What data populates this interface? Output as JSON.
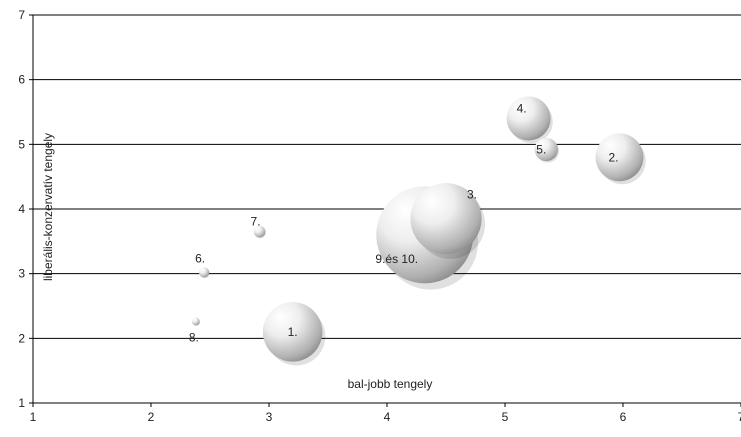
{
  "chart_data": {
    "type": "scatter",
    "subtype": "bubble",
    "title": "",
    "xlabel": "bal-jobb tengely",
    "ylabel": "liberális-konzervatív tengely",
    "xlim": [
      1,
      7
    ],
    "ylim": [
      1,
      7
    ],
    "x_ticks": [
      "1",
      "2",
      "3",
      "4",
      "5",
      "6",
      "7"
    ],
    "y_ticks": [
      "1",
      "2",
      "3",
      "4",
      "5",
      "6",
      "7"
    ],
    "grid": "horizontal",
    "legend": "none",
    "bubble_color": "#b8b8b8",
    "points": [
      {
        "label": "1.",
        "x": 3.2,
        "y": 2.1,
        "size": 0.46
      },
      {
        "label": "2.",
        "x": 5.97,
        "y": 4.8,
        "size": 0.37
      },
      {
        "label": "3.",
        "x": 4.5,
        "y": 3.85,
        "size": 0.55
      },
      {
        "label": "4.",
        "x": 5.2,
        "y": 5.4,
        "size": 0.34
      },
      {
        "label": "5.",
        "x": 5.35,
        "y": 4.92,
        "size": 0.18
      },
      {
        "label": "6.",
        "x": 2.45,
        "y": 3.02,
        "size": 0.08
      },
      {
        "label": "7.",
        "x": 2.92,
        "y": 3.65,
        "size": 0.09
      },
      {
        "label": "8.",
        "x": 2.38,
        "y": 2.26,
        "size": 0.06
      },
      {
        "label": "9.és 10.",
        "x": 4.32,
        "y": 3.6,
        "size": 0.75
      }
    ]
  }
}
